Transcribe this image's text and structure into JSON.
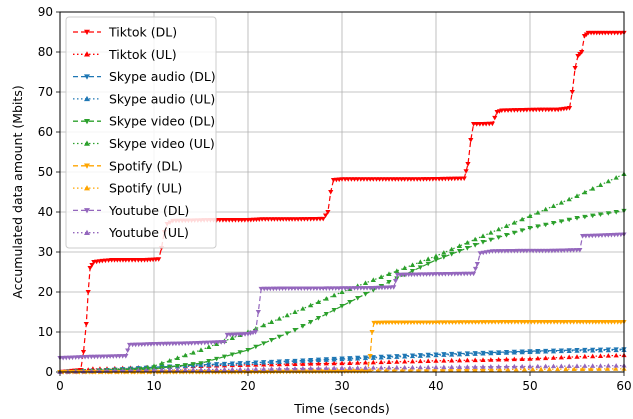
{
  "chart_data": {
    "type": "line",
    "title": "",
    "xlabel": "Time (seconds)",
    "ylabel": "Accumulated data amount (Mbits)",
    "xlim": [
      0,
      60
    ],
    "ylim": [
      0,
      90
    ],
    "xticks": [
      0,
      10,
      20,
      30,
      40,
      50,
      60
    ],
    "yticks": [
      0,
      10,
      20,
      30,
      40,
      50,
      60,
      70,
      80,
      90
    ],
    "grid": true,
    "legend_position": "top-left",
    "series": [
      {
        "name": "Tiktok (DL)",
        "color": "#ff0000",
        "dash": "dashed",
        "marker": "triangle-down",
        "points": [
          [
            0,
            0
          ],
          [
            2.2,
            0.5
          ],
          [
            2.5,
            5
          ],
          [
            2.8,
            12
          ],
          [
            3.0,
            20
          ],
          [
            3.2,
            26
          ],
          [
            3.6,
            27.5
          ],
          [
            4.5,
            27.8
          ],
          [
            5.5,
            28
          ],
          [
            7,
            28
          ],
          [
            9,
            28
          ],
          [
            10.5,
            28.2
          ],
          [
            10.8,
            31
          ],
          [
            11.1,
            35
          ],
          [
            11.4,
            37
          ],
          [
            12,
            37.8
          ],
          [
            14,
            37.9
          ],
          [
            16,
            38
          ],
          [
            18,
            38
          ],
          [
            20,
            38
          ],
          [
            21.5,
            38.2
          ],
          [
            22.5,
            38.2
          ],
          [
            25,
            38.2
          ],
          [
            28,
            38.3
          ],
          [
            28.5,
            40
          ],
          [
            28.8,
            45
          ],
          [
            29.1,
            48
          ],
          [
            30,
            48.2
          ],
          [
            32,
            48.2
          ],
          [
            35,
            48.2
          ],
          [
            38,
            48.2
          ],
          [
            41,
            48.3
          ],
          [
            43,
            48.4
          ],
          [
            43.4,
            52
          ],
          [
            43.7,
            58
          ],
          [
            44,
            62
          ],
          [
            45,
            62
          ],
          [
            46,
            62.1
          ],
          [
            46.5,
            65
          ],
          [
            47,
            65.4
          ],
          [
            49,
            65.5
          ],
          [
            51,
            65.6
          ],
          [
            53,
            65.6
          ],
          [
            54.2,
            66
          ],
          [
            54.5,
            70
          ],
          [
            54.8,
            76
          ],
          [
            55.1,
            79
          ],
          [
            55.5,
            80
          ],
          [
            55.8,
            84
          ],
          [
            56.2,
            84.8
          ],
          [
            58,
            84.8
          ],
          [
            60,
            84.8
          ]
        ]
      },
      {
        "name": "Tiktok (UL)",
        "color": "#ff0000",
        "dash": "dotted",
        "marker": "triangle-up",
        "points": [
          [
            0,
            0
          ],
          [
            2.5,
            0.3
          ],
          [
            3.5,
            0.8
          ],
          [
            5,
            0.8
          ],
          [
            10,
            1.2
          ],
          [
            15,
            1.5
          ],
          [
            20,
            1.8
          ],
          [
            25,
            2.0
          ],
          [
            30,
            2.2
          ],
          [
            35,
            2.5
          ],
          [
            40,
            2.8
          ],
          [
            45,
            3.0
          ],
          [
            50,
            3.3
          ],
          [
            55,
            3.8
          ],
          [
            60,
            4.2
          ]
        ]
      },
      {
        "name": "Skype audio (DL)",
        "color": "#1f77b4",
        "dash": "dashed",
        "marker": "triangle-down",
        "points": [
          [
            0,
            0
          ],
          [
            5,
            0.5
          ],
          [
            10,
            1.2
          ],
          [
            15,
            1.8
          ],
          [
            20,
            2.3
          ],
          [
            25,
            2.8
          ],
          [
            30,
            3.4
          ],
          [
            35,
            3.9
          ],
          [
            40,
            4.4
          ],
          [
            45,
            4.8
          ],
          [
            50,
            5.2
          ],
          [
            55,
            5.5
          ],
          [
            60,
            5.7
          ]
        ]
      },
      {
        "name": "Skype audio (UL)",
        "color": "#1f77b4",
        "dash": "dotted",
        "marker": "triangle-up",
        "points": [
          [
            0,
            0
          ],
          [
            5,
            0.5
          ],
          [
            10,
            1.1
          ],
          [
            15,
            1.7
          ],
          [
            20,
            2.2
          ],
          [
            25,
            2.7
          ],
          [
            30,
            3.2
          ],
          [
            35,
            3.7
          ],
          [
            40,
            4.2
          ],
          [
            45,
            4.6
          ],
          [
            50,
            5.0
          ],
          [
            55,
            5.3
          ],
          [
            60,
            5.5
          ]
        ]
      },
      {
        "name": "Skype video (DL)",
        "color": "#2ca02c",
        "dash": "dashed",
        "marker": "triangle-down",
        "points": [
          [
            0,
            0
          ],
          [
            10,
            0.8
          ],
          [
            15,
            2.2
          ],
          [
            20,
            5.5
          ],
          [
            25,
            10.5
          ],
          [
            30,
            16.5
          ],
          [
            35,
            22.5
          ],
          [
            40,
            28.0
          ],
          [
            45,
            32.5
          ],
          [
            50,
            36.0
          ],
          [
            55,
            38.5
          ],
          [
            60,
            40.3
          ]
        ]
      },
      {
        "name": "Skype video (UL)",
        "color": "#2ca02c",
        "dash": "dotted",
        "marker": "triangle-up",
        "points": [
          [
            0,
            0
          ],
          [
            8,
            0.5
          ],
          [
            10,
            1.5
          ],
          [
            15,
            5.5
          ],
          [
            20,
            10.0
          ],
          [
            25,
            15.0
          ],
          [
            30,
            20.0
          ],
          [
            35,
            24.5
          ],
          [
            40,
            29.0
          ],
          [
            45,
            34.0
          ],
          [
            50,
            39.0
          ],
          [
            55,
            44.0
          ],
          [
            60,
            49.5
          ]
        ]
      },
      {
        "name": "Spotify (DL)",
        "color": "#ffa500",
        "dash": "dashed",
        "marker": "triangle-down",
        "points": [
          [
            0,
            0
          ],
          [
            10,
            0
          ],
          [
            20,
            0
          ],
          [
            32.7,
            0.2
          ],
          [
            33.0,
            4
          ],
          [
            33.2,
            10
          ],
          [
            33.4,
            12.3
          ],
          [
            35,
            12.4
          ],
          [
            40,
            12.4
          ],
          [
            47,
            12.5
          ],
          [
            55,
            12.5
          ],
          [
            60,
            12.5
          ]
        ]
      },
      {
        "name": "Spotify (UL)",
        "color": "#ffa500",
        "dash": "dotted",
        "marker": "triangle-up",
        "points": [
          [
            0,
            0
          ],
          [
            20,
            0.2
          ],
          [
            33,
            0.4
          ],
          [
            45,
            0.6
          ],
          [
            60,
            0.8
          ]
        ]
      },
      {
        "name": "Youtube (DL)",
        "color": "#9467bd",
        "dash": "dashed",
        "marker": "triangle-down",
        "points": [
          [
            0,
            3.5
          ],
          [
            3,
            3.8
          ],
          [
            7,
            4.0
          ],
          [
            7.4,
            6.8
          ],
          [
            10,
            7.0
          ],
          [
            14,
            7.2
          ],
          [
            17.5,
            7.5
          ],
          [
            17.8,
            9.3
          ],
          [
            20,
            9.5
          ],
          [
            20.8,
            10
          ],
          [
            21.1,
            15
          ],
          [
            21.4,
            20.8
          ],
          [
            24,
            20.9
          ],
          [
            28,
            20.9
          ],
          [
            33,
            21.0
          ],
          [
            35.5,
            21.2
          ],
          [
            35.9,
            24.3
          ],
          [
            38,
            24.4
          ],
          [
            41,
            24.5
          ],
          [
            44,
            24.6
          ],
          [
            44.4,
            27
          ],
          [
            44.7,
            29.7
          ],
          [
            46,
            30.2
          ],
          [
            49,
            30.3
          ],
          [
            52,
            30.3
          ],
          [
            55.3,
            30.5
          ],
          [
            55.6,
            34.0
          ],
          [
            58,
            34.2
          ],
          [
            60,
            34.4
          ]
        ]
      },
      {
        "name": "Youtube (UL)",
        "color": "#9467bd",
        "dash": "dotted",
        "marker": "triangle-up",
        "points": [
          [
            0,
            0
          ],
          [
            5,
            0.3
          ],
          [
            10,
            0.5
          ],
          [
            20,
            0.7
          ],
          [
            30,
            1.0
          ],
          [
            40,
            1.2
          ],
          [
            50,
            1.4
          ],
          [
            60,
            1.6
          ]
        ]
      }
    ]
  }
}
